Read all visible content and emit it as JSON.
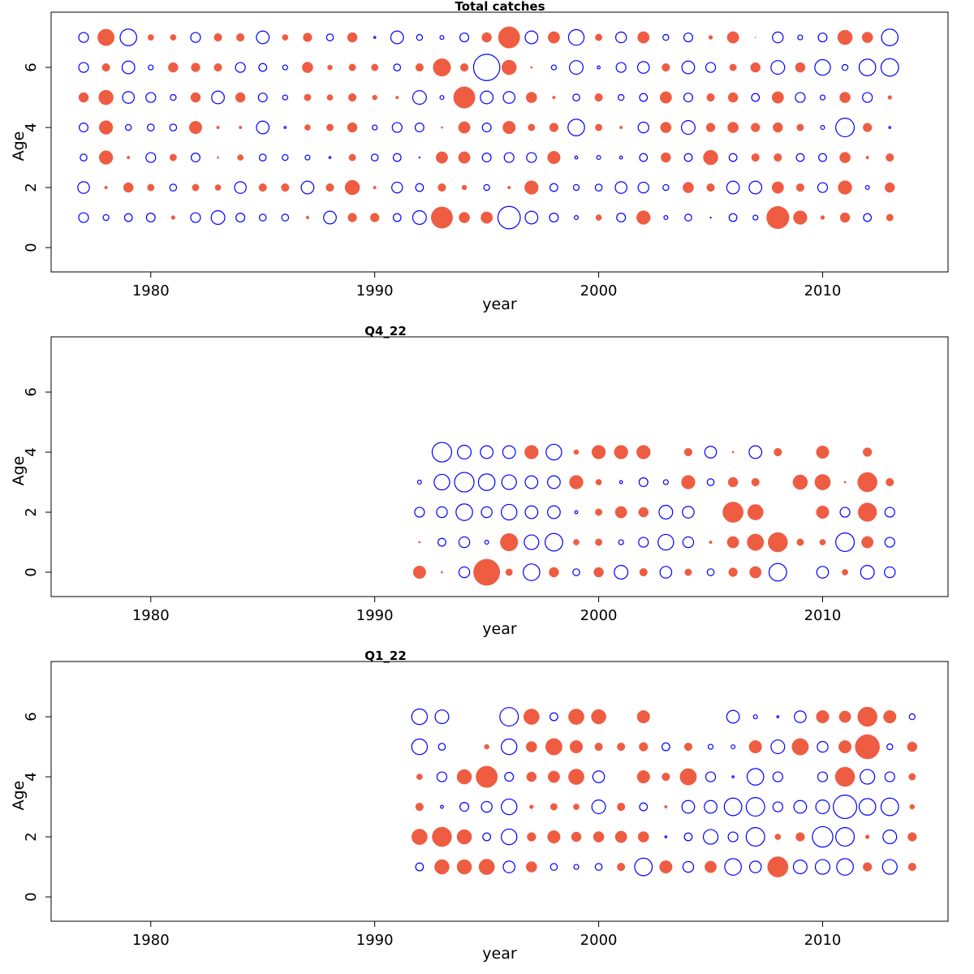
{
  "chart_data": [
    {
      "type": "bubble",
      "title": "Total catches",
      "xlabel": "year",
      "ylabel": "Age",
      "x": [
        1977,
        1978,
        1979,
        1980,
        1981,
        1982,
        1983,
        1984,
        1985,
        1986,
        1987,
        1988,
        1989,
        1990,
        1991,
        1992,
        1993,
        1994,
        1995,
        1996,
        1997,
        1998,
        1999,
        2000,
        2001,
        2002,
        2003,
        2004,
        2005,
        2006,
        2007,
        2008,
        2009,
        2010,
        2011,
        2012,
        2013
      ],
      "y": [
        7,
        6,
        5,
        4,
        3,
        2,
        1
      ],
      "values": [
        [
          -1.0,
          1.7,
          -1.7,
          0.6,
          0.6,
          -1.0,
          0.8,
          0.8,
          -1.3,
          0.6,
          0.9,
          -0.7,
          1.0,
          -0.2,
          -1.3,
          -0.6,
          -0.4,
          -0.9,
          1.0,
          2.2,
          -1.3,
          1.2,
          -1.6,
          0.7,
          -1.1,
          1.2,
          -0.6,
          -0.9,
          0.4,
          1.2,
          0.1,
          -1.1,
          -0.5,
          -0.9,
          1.5,
          1.1,
          -1.7
        ],
        [
          -1.0,
          0.8,
          -1.3,
          -0.5,
          1.0,
          0.9,
          0.8,
          -1.0,
          -0.8,
          -0.5,
          1.1,
          0.5,
          0.7,
          0.7,
          -0.7,
          0.8,
          1.8,
          0.8,
          -2.7,
          1.5,
          0.2,
          -0.5,
          -1.4,
          -0.3,
          -1.0,
          -1.2,
          0.8,
          -1.3,
          -1.0,
          0.7,
          1.0,
          -1.4,
          1.0,
          -1.6,
          -0.6,
          -1.7,
          -1.8
        ],
        [
          1.0,
          1.5,
          -1.2,
          -1.0,
          -0.6,
          1.0,
          -1.3,
          1.0,
          -0.9,
          -0.5,
          0.7,
          0.6,
          0.8,
          0.5,
          0.3,
          -1.4,
          -0.4,
          2.2,
          -1.3,
          -1.2,
          1.1,
          0.3,
          -0.7,
          0.8,
          -0.6,
          -0.8,
          1.2,
          -0.9,
          0.8,
          1.0,
          -0.8,
          1.2,
          -1.0,
          -0.5,
          1.1,
          -1.0,
          0.4
        ],
        [
          -0.9,
          1.4,
          -0.6,
          -0.7,
          -0.7,
          1.3,
          0.3,
          0.3,
          -1.3,
          -0.2,
          0.6,
          0.7,
          1.0,
          -0.5,
          -1.0,
          -0.9,
          0.2,
          1.2,
          -0.9,
          1.3,
          0.7,
          0.9,
          -1.7,
          0.7,
          0.3,
          -1.1,
          1.1,
          -1.4,
          0.9,
          1.1,
          0.9,
          1.0,
          0.7,
          -0.4,
          -1.9,
          0.9,
          -0.2
        ],
        [
          -0.7,
          1.4,
          0.3,
          -1.0,
          0.7,
          -0.9,
          0.2,
          0.6,
          -0.7,
          -0.6,
          -0.5,
          -0.2,
          0.7,
          -0.7,
          -0.8,
          -0.1,
          1.2,
          1.2,
          -0.9,
          -1.0,
          -1.0,
          1.3,
          -0.3,
          -0.4,
          -0.3,
          -0.8,
          1.0,
          -0.8,
          1.5,
          -0.8,
          0.8,
          0.8,
          -0.8,
          -0.8,
          1.1,
          0.3,
          0.8
        ],
        [
          -1.2,
          0.3,
          1.0,
          0.7,
          -0.7,
          0.7,
          0.6,
          -1.2,
          0.8,
          0.8,
          -1.3,
          0.8,
          1.5,
          0.3,
          -1.1,
          -0.8,
          0.8,
          0.5,
          -0.6,
          0.3,
          1.4,
          -0.8,
          -0.6,
          -0.7,
          -1.2,
          -1.1,
          -0.6,
          1.1,
          0.8,
          -1.3,
          -1.3,
          1.2,
          0.8,
          -1.0,
          1.4,
          -0.4,
          1.0
        ],
        [
          -1.0,
          -0.6,
          -0.8,
          -0.9,
          0.4,
          -1.0,
          -1.4,
          -0.9,
          -0.7,
          -0.7,
          0.3,
          -1.3,
          0.9,
          0.9,
          -0.8,
          -1.4,
          2.2,
          1.1,
          1.2,
          -2.3,
          -1.3,
          -0.9,
          -0.4,
          0.6,
          -0.9,
          1.4,
          -0.4,
          -0.7,
          -0.1,
          -0.8,
          -0.5,
          2.3,
          1.4,
          0.4,
          1.0,
          -0.8,
          0.7
        ]
      ],
      "xlim": [
        1975.55,
        2015.6
      ],
      "ylim": [
        -0.81,
        7.84
      ],
      "xticks": [
        1980,
        1990,
        2000,
        2010
      ],
      "yticks": [
        0,
        2,
        4,
        6
      ],
      "positive_color": "#ee5c42",
      "negative_color": "#0000ff"
    },
    {
      "type": "bubble",
      "title": "Q4_22",
      "xlabel": "year",
      "ylabel": "Age",
      "x": [
        1992,
        1993,
        1994,
        1995,
        1996,
        1997,
        1998,
        1999,
        2000,
        2001,
        2002,
        2003,
        2004,
        2005,
        2006,
        2007,
        2008,
        2009,
        2010,
        2011,
        2012,
        2013
      ],
      "y": [
        4,
        3,
        2,
        1,
        0
      ],
      "values": [
        [
          null,
          -2.0,
          -1.4,
          -1.3,
          -1.3,
          1.4,
          -1.6,
          0.5,
          1.4,
          1.4,
          1.4,
          null,
          0.8,
          -1.2,
          0.2,
          -1.3,
          0.8,
          null,
          1.3,
          null,
          0.9,
          null
        ],
        [
          -0.4,
          -1.6,
          -2.0,
          -1.7,
          -1.5,
          -1.3,
          -1.3,
          1.4,
          0.6,
          -0.3,
          -0.9,
          -0.5,
          1.4,
          -0.7,
          1.0,
          0.8,
          null,
          1.5,
          1.6,
          0.2,
          2.0,
          0.8
        ],
        [
          -1.0,
          -1.1,
          -1.7,
          -1.1,
          -1.6,
          -1.3,
          -1.3,
          -0.3,
          0.7,
          1.2,
          1.0,
          -1.4,
          -1.2,
          null,
          2.1,
          1.6,
          null,
          null,
          1.3,
          -1.0,
          1.9,
          -1.0
        ],
        [
          0.2,
          -0.8,
          -1.1,
          -0.4,
          1.8,
          -1.5,
          -1.8,
          0.6,
          0.7,
          -0.5,
          -1.0,
          -1.6,
          -1.1,
          0.3,
          1.2,
          1.7,
          2.0,
          0.7,
          0.6,
          -1.9,
          1.2,
          -1.0
        ],
        [
          1.3,
          0.2,
          -1.1,
          2.7,
          0.7,
          -1.7,
          1.0,
          -0.7,
          1.0,
          -1.4,
          0.8,
          -1.2,
          0.7,
          -0.7,
          0.9,
          1.2,
          -1.8,
          null,
          -1.2,
          0.6,
          -1.4,
          -1.1
        ]
      ],
      "xlim": [
        1975.55,
        2015.6
      ],
      "ylim": [
        -0.81,
        7.84
      ],
      "xticks": [
        1980,
        1990,
        2000,
        2010
      ],
      "yticks": [
        0,
        2,
        4,
        6
      ],
      "positive_color": "#ee5c42",
      "negative_color": "#0000ff"
    },
    {
      "type": "bubble",
      "title": "Q1_22",
      "xlabel": "year",
      "ylabel": "Age",
      "x": [
        1992,
        1993,
        1994,
        1995,
        1996,
        1997,
        1998,
        1999,
        2000,
        2001,
        2002,
        2003,
        2004,
        2005,
        2006,
        2007,
        2008,
        2009,
        2010,
        2011,
        2012,
        2013,
        2014
      ],
      "y": [
        6,
        5,
        4,
        3,
        2,
        1
      ],
      "values": [
        [
          -1.6,
          -1.4,
          null,
          null,
          -1.9,
          1.6,
          -0.8,
          1.6,
          1.5,
          null,
          1.3,
          null,
          null,
          null,
          -1.3,
          -0.4,
          -0.2,
          -1.2,
          1.3,
          1.2,
          2.0,
          1.3,
          -0.6
        ],
        [
          -1.6,
          -0.7,
          null,
          0.5,
          -1.6,
          1.1,
          1.7,
          1.3,
          0.8,
          0.8,
          0.9,
          -0.8,
          0.8,
          -0.5,
          -0.4,
          1.3,
          -1.4,
          1.7,
          -1.1,
          1.3,
          2.5,
          -0.6,
          1.0
        ],
        [
          0.6,
          -1.0,
          1.5,
          2.2,
          -0.9,
          1.0,
          1.2,
          1.6,
          -1.2,
          null,
          1.3,
          0.8,
          1.7,
          -1.0,
          -0.2,
          -1.7,
          -1.0,
          null,
          -1.0,
          2.0,
          -1.5,
          -1.0,
          0.7
        ],
        [
          0.8,
          -0.3,
          -0.9,
          -1.1,
          -1.6,
          0.4,
          0.7,
          0.6,
          -1.4,
          0.8,
          -0.8,
          0.3,
          -1.3,
          -1.3,
          -1.8,
          -1.9,
          -1.0,
          -1.3,
          -1.4,
          -2.4,
          -1.7,
          -1.8,
          0.5
        ],
        [
          1.6,
          2.0,
          1.5,
          -0.8,
          -1.6,
          0.9,
          1.3,
          1.0,
          1.1,
          1.2,
          1.1,
          -0.2,
          -0.8,
          -1.5,
          -1.0,
          -1.9,
          0.6,
          0.9,
          -2.1,
          -1.9,
          0.4,
          -1.4,
          0.9
        ],
        [
          -0.8,
          1.5,
          1.5,
          1.6,
          -1.2,
          1.1,
          -0.7,
          -0.5,
          -0.7,
          0.8,
          -1.8,
          1.3,
          -1.1,
          1.2,
          -1.7,
          -1.2,
          2.1,
          -1.4,
          -1.5,
          -1.7,
          0.9,
          -1.5,
          0.8
        ]
      ],
      "xlim": [
        1975.55,
        2015.6
      ],
      "ylim": [
        -0.81,
        7.84
      ],
      "xticks": [
        1980,
        1990,
        2000,
        2010
      ],
      "yticks": [
        0,
        2,
        4,
        6
      ],
      "positive_color": "#ee5c42",
      "negative_color": "#0000ff"
    }
  ]
}
